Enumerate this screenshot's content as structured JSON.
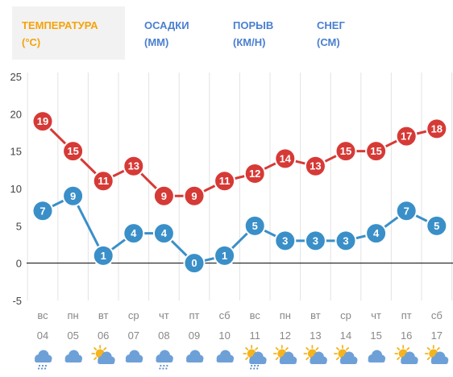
{
  "tabs": [
    {
      "line1": "ТЕМПЕРАТУРА",
      "line2": "(°C)",
      "active": true
    },
    {
      "line1": "ОСАДКИ",
      "line2": "(ММ)",
      "active": false
    },
    {
      "line1": "ПОРЫВ",
      "line2": "(КМ/Н)",
      "active": false
    },
    {
      "line1": "СНЕГ",
      "line2": "(СМ)",
      "active": false
    }
  ],
  "chart_data": {
    "type": "line",
    "categories": [
      "вс 04",
      "пн 05",
      "вт 06",
      "ср 07",
      "чт 08",
      "пт 09",
      "сб 10",
      "вс 11",
      "пн 12",
      "вт 13",
      "ср 14",
      "чт 15",
      "пт 16",
      "сб 17"
    ],
    "days": [
      "вс",
      "пн",
      "вт",
      "ср",
      "чт",
      "пт",
      "сб",
      "вс",
      "пн",
      "вт",
      "ср",
      "чт",
      "пт",
      "сб"
    ],
    "dates": [
      "04",
      "05",
      "06",
      "07",
      "08",
      "09",
      "10",
      "11",
      "12",
      "13",
      "14",
      "15",
      "16",
      "17"
    ],
    "series": [
      {
        "color": "#d63a36",
        "values": [
          19,
          15,
          11,
          13,
          9,
          9,
          11,
          12,
          14,
          13,
          15,
          15,
          17,
          18
        ]
      },
      {
        "color": "#3a8fc8",
        "values": [
          7,
          9,
          1,
          4,
          4,
          0,
          1,
          5,
          3,
          3,
          3,
          4,
          7,
          5
        ]
      }
    ],
    "yticks": [
      25,
      20,
      15,
      10,
      5,
      0,
      -5
    ],
    "ylim": [
      -5,
      25
    ],
    "grid": true,
    "icons": [
      "rain-cloud-icon",
      "cloud-icon",
      "sun-cloud-icon",
      "cloud-icon",
      "rain-cloud-icon",
      "cloud-icon",
      "cloud-icon",
      "sun-cloud-rain-icon",
      "sun-cloud-icon",
      "sun-cloud-icon",
      "sun-cloud-icon",
      "cloud-icon",
      "sun-cloud-icon",
      "sun-cloud-icon"
    ]
  }
}
